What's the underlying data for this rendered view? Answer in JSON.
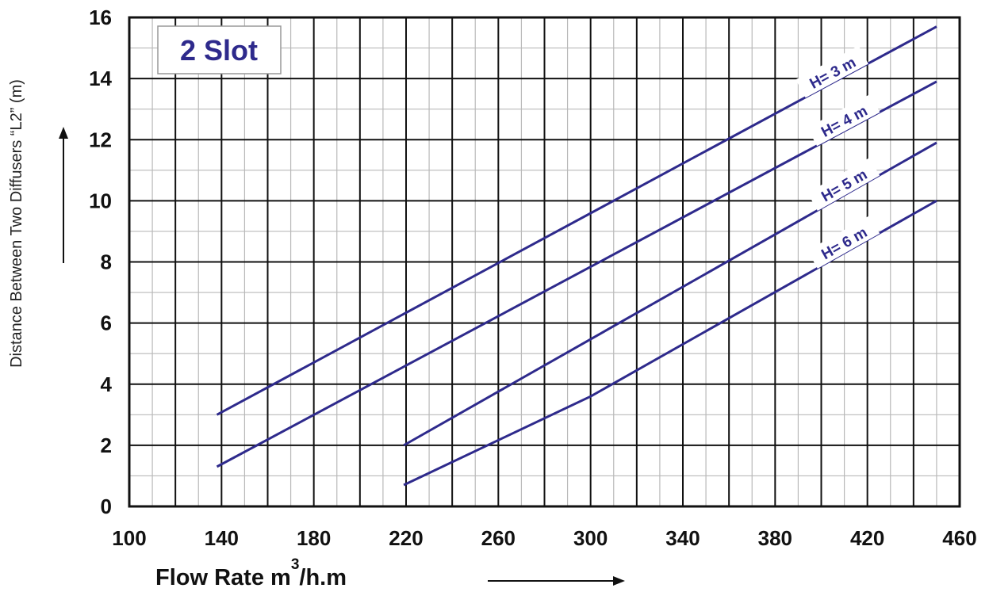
{
  "chart_data": {
    "type": "line",
    "title": "2 Slot",
    "xlabel_main": "Flow Rate  m",
    "xlabel_sup": "3",
    "xlabel_tail": "/h.m",
    "ylabel": "Distance Between Two Diffusers “L2” (m)",
    "xlim": [
      100,
      460
    ],
    "ylim": [
      0,
      16
    ],
    "xticks": [
      100,
      140,
      180,
      220,
      260,
      300,
      340,
      380,
      420,
      460
    ],
    "yticks": [
      0,
      2,
      4,
      6,
      8,
      10,
      12,
      14,
      16
    ],
    "x_minor_step": 10,
    "y_minor_step": 1,
    "grid": true,
    "line_color": "#2e2a8c",
    "series": [
      {
        "name": "H= 3 m",
        "x": [
          138,
          450
        ],
        "y": [
          3.0,
          15.7
        ]
      },
      {
        "name": "H= 4 m",
        "x": [
          138,
          450
        ],
        "y": [
          1.3,
          13.9
        ]
      },
      {
        "name": "H= 5 m",
        "x": [
          219,
          450
        ],
        "y": [
          2.0,
          11.9
        ]
      },
      {
        "name": "H= 6 m",
        "x": [
          219,
          300,
          450
        ],
        "y": [
          0.7,
          3.6,
          10.0
        ]
      }
    ]
  }
}
